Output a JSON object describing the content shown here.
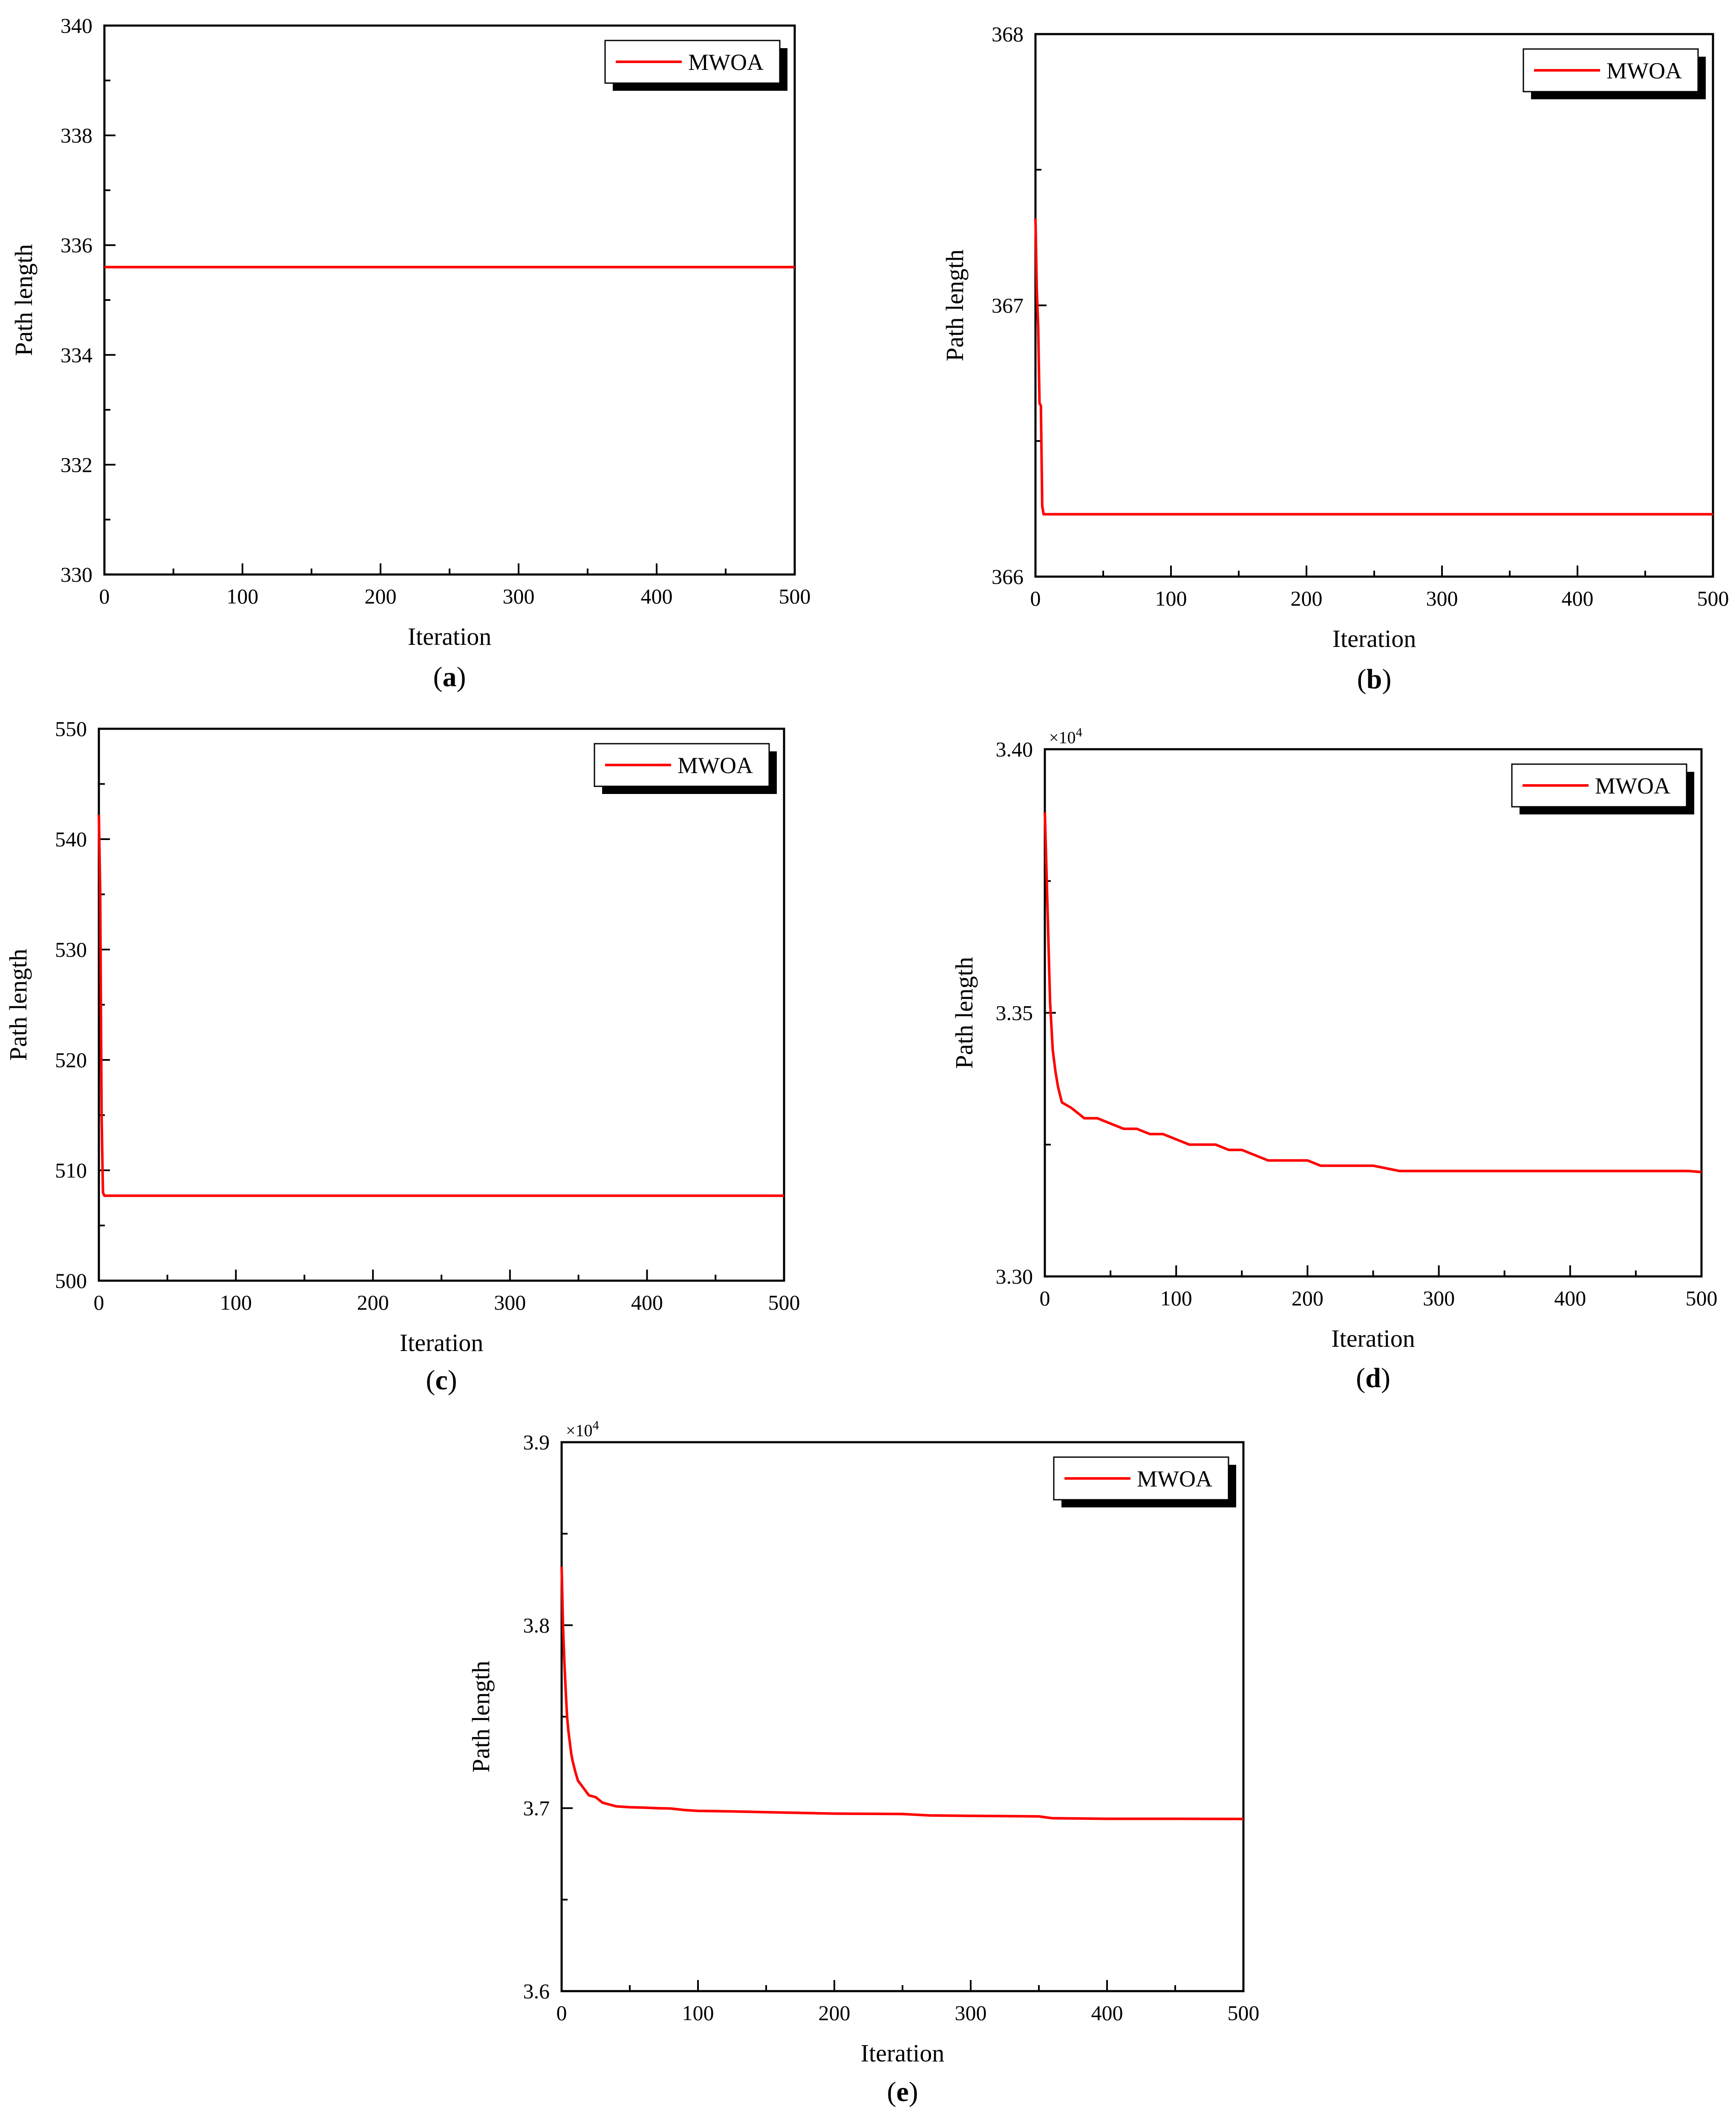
{
  "figure": {
    "legend_series": "MWOA",
    "series_color": "#ff0000",
    "axis_color": "#000000"
  },
  "chart_data": [
    {
      "panel": "a",
      "caption_open": "(",
      "caption_letter": "a",
      "caption_close": ")",
      "type": "line",
      "xlabel": "Iteration",
      "ylabel": "Path length",
      "xlim": [
        0,
        500
      ],
      "ylim": [
        330,
        340
      ],
      "xticks": [
        0,
        100,
        200,
        300,
        400,
        500
      ],
      "yticks": [
        330,
        332,
        334,
        336,
        338,
        340
      ],
      "ytick_labels": [
        "330",
        "332",
        "334",
        "336",
        "338",
        "340"
      ],
      "exponent_label": "",
      "legend": "top-right",
      "series": [
        {
          "name": "MWOA",
          "x": [
            0,
            500
          ],
          "y": [
            335.6,
            335.6
          ]
        }
      ]
    },
    {
      "panel": "b",
      "caption_open": "(",
      "caption_letter": "b",
      "caption_close": ")",
      "type": "line",
      "xlabel": "Iteration",
      "ylabel": "Path length",
      "xlim": [
        0,
        500
      ],
      "ylim": [
        366,
        368
      ],
      "xticks": [
        0,
        100,
        200,
        300,
        400,
        500
      ],
      "yticks": [
        366,
        367,
        368
      ],
      "ytick_labels": [
        "366",
        "367",
        "368"
      ],
      "exponent_label": "",
      "legend": "top-right",
      "series": [
        {
          "name": "MWOA",
          "x": [
            0,
            1,
            2,
            3,
            4,
            5,
            6,
            500
          ],
          "y": [
            367.32,
            367.05,
            366.92,
            366.64,
            366.63,
            366.26,
            366.23,
            366.23
          ]
        }
      ]
    },
    {
      "panel": "c",
      "caption_open": "(",
      "caption_letter": "c",
      "caption_close": ")",
      "type": "line",
      "xlabel": "Iteration",
      "ylabel": "Path length",
      "xlim": [
        0,
        500
      ],
      "ylim": [
        500,
        550
      ],
      "xticks": [
        0,
        100,
        200,
        300,
        400,
        500
      ],
      "yticks": [
        500,
        510,
        520,
        530,
        540,
        550
      ],
      "ytick_labels": [
        "500",
        "510",
        "520",
        "530",
        "540",
        "550"
      ],
      "exponent_label": "",
      "legend": "top-right",
      "series": [
        {
          "name": "MWOA",
          "x": [
            0,
            1,
            2,
            3,
            4,
            500
          ],
          "y": [
            542.2,
            535,
            515,
            508,
            507.7,
            507.7
          ]
        }
      ]
    },
    {
      "panel": "d",
      "caption_open": "(",
      "caption_letter": "d",
      "caption_close": ")",
      "type": "line",
      "xlabel": "Iteration",
      "ylabel": "Path length",
      "xlim": [
        0,
        500
      ],
      "ylim": [
        3.3,
        3.4
      ],
      "xticks": [
        0,
        100,
        200,
        300,
        400,
        500
      ],
      "yticks": [
        3.3,
        3.35,
        3.4
      ],
      "ytick_labels": [
        "3.30",
        "3.35",
        "3.40"
      ],
      "exponent_label": "×10",
      "exponent_power": "4",
      "legend": "top-right",
      "series": [
        {
          "name": "MWOA",
          "x": [
            0,
            2,
            4,
            6,
            8,
            10,
            13,
            20,
            25,
            30,
            40,
            50,
            60,
            70,
            80,
            90,
            100,
            110,
            120,
            130,
            140,
            150,
            160,
            170,
            180,
            190,
            200,
            210,
            230,
            250,
            270,
            280,
            300,
            350,
            400,
            450,
            490,
            500
          ],
          "y": [
            3.388,
            3.37,
            3.352,
            3.343,
            3.339,
            3.336,
            3.333,
            3.332,
            3.331,
            3.33,
            3.33,
            3.329,
            3.328,
            3.328,
            3.327,
            3.327,
            3.326,
            3.325,
            3.325,
            3.325,
            3.324,
            3.324,
            3.323,
            3.322,
            3.322,
            3.322,
            3.322,
            3.321,
            3.321,
            3.321,
            3.32,
            3.32,
            3.32,
            3.32,
            3.32,
            3.32,
            3.32,
            3.3198
          ]
        }
      ]
    },
    {
      "panel": "e",
      "caption_open": "(",
      "caption_letter": "e",
      "caption_close": ")",
      "type": "line",
      "xlabel": "Iteration",
      "ylabel": "Path length",
      "xlim": [
        0,
        500
      ],
      "ylim": [
        3.6,
        3.9
      ],
      "xticks": [
        0,
        100,
        200,
        300,
        400,
        500
      ],
      "yticks": [
        3.6,
        3.7,
        3.8,
        3.9
      ],
      "ytick_labels": [
        "3.6",
        "3.7",
        "3.8",
        "3.9"
      ],
      "exponent_label": "×10",
      "exponent_power": "4",
      "legend": "top-right",
      "series": [
        {
          "name": "MWOA",
          "x": [
            0,
            1,
            2,
            3,
            4,
            5,
            6,
            7,
            8,
            10,
            12,
            15,
            20,
            25,
            30,
            35,
            40,
            50,
            60,
            70,
            80,
            90,
            100,
            120,
            150,
            200,
            250,
            270,
            300,
            350,
            360,
            400,
            450,
            500
          ],
          "y": [
            3.832,
            3.8,
            3.78,
            3.764,
            3.75,
            3.742,
            3.736,
            3.73,
            3.726,
            3.72,
            3.715,
            3.712,
            3.707,
            3.706,
            3.703,
            3.702,
            3.701,
            3.7005,
            3.7003,
            3.7,
            3.6998,
            3.699,
            3.6985,
            3.6983,
            3.6978,
            3.697,
            3.6968,
            3.696,
            3.6958,
            3.6955,
            3.6945,
            3.6942,
            3.6942,
            3.6941
          ]
        }
      ]
    }
  ]
}
